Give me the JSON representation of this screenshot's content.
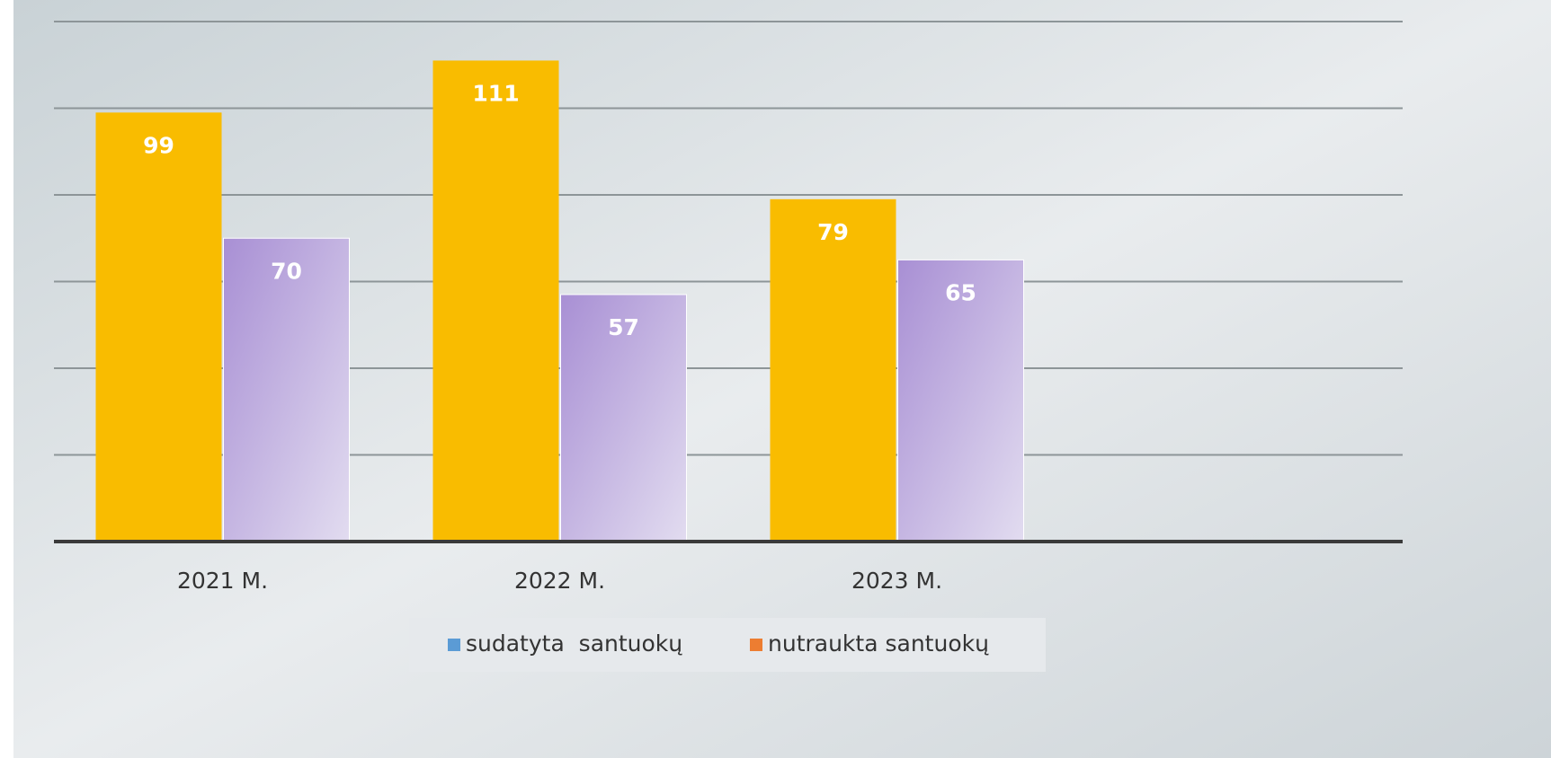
{
  "chart_data": {
    "type": "bar",
    "categories": [
      "2021 M.",
      "2022 M.",
      "2023 M.",
      null
    ],
    "series": [
      {
        "name": "sudatyta  santuokų",
        "color": "#f9bc00",
        "legend_color": "#5b9bd5",
        "values": [
          99,
          111,
          79,
          null
        ]
      },
      {
        "name": "nutraukta santuokų",
        "color": "#b9a6dc",
        "legend_color": "#ed7d31",
        "values": [
          70,
          57,
          65,
          null
        ]
      }
    ],
    "ylim": [
      0,
      120
    ],
    "yticks": [
      0,
      20,
      40,
      60,
      80,
      100,
      120
    ],
    "grid": true,
    "legend": "bottom"
  }
}
